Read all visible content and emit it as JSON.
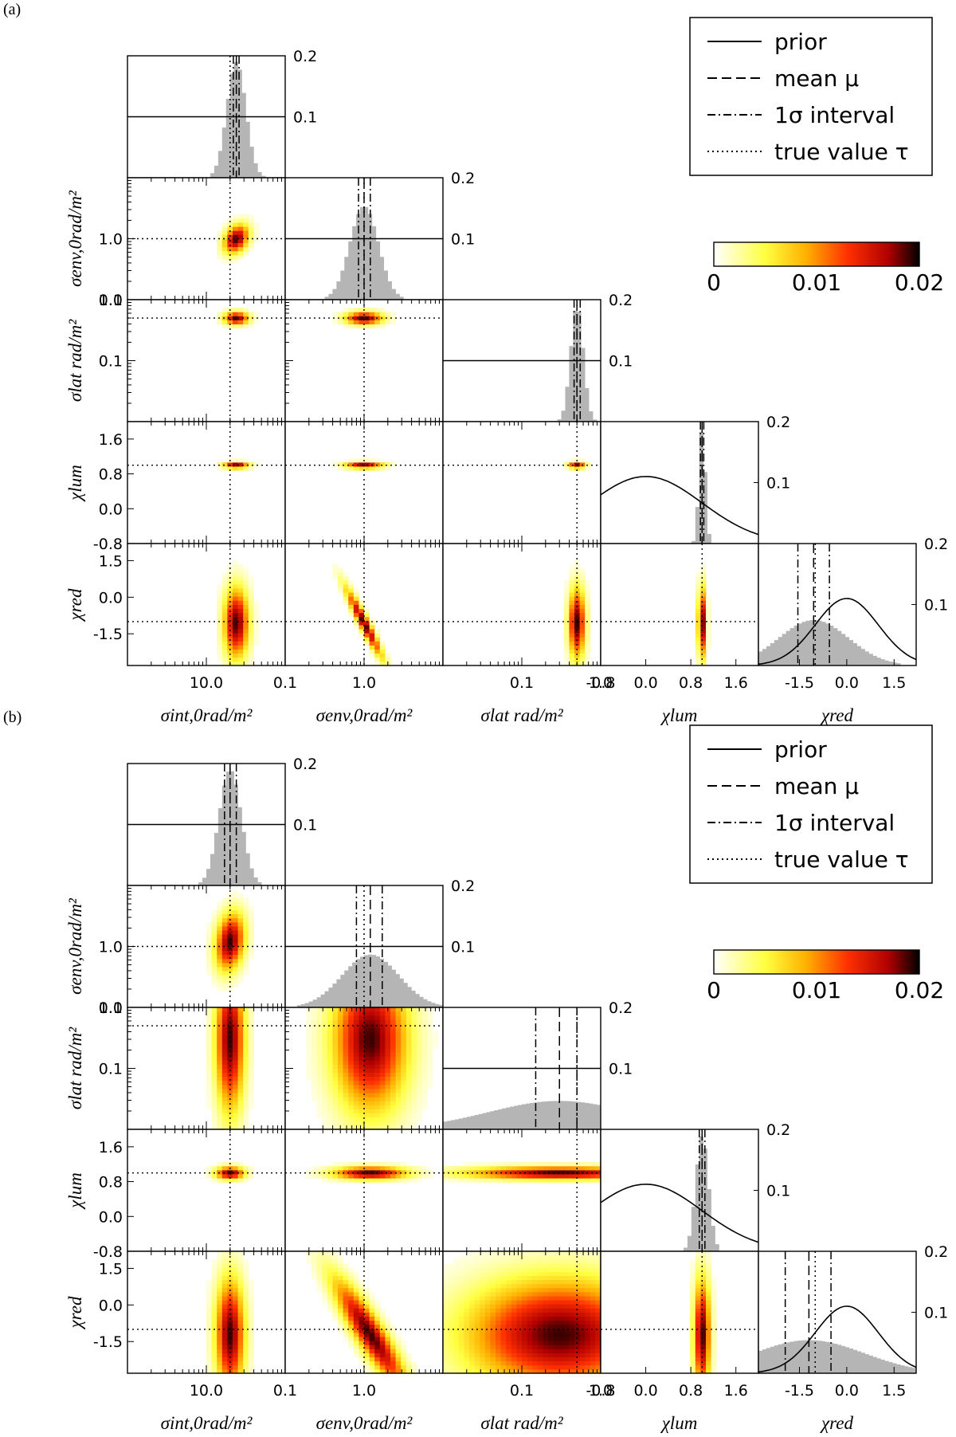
{
  "colorbar": {
    "min": 0,
    "max": 0.02,
    "ticks": [
      "0",
      "0.01",
      "0.02"
    ]
  },
  "legend": [
    {
      "label": "prior",
      "style": "solid"
    },
    {
      "label": "mean μ",
      "style": "dashed"
    },
    {
      "label": "1σ interval",
      "style": "dashdot"
    },
    {
      "label": "true value τ",
      "style": "dotted"
    }
  ],
  "chart_data": [
    {
      "type": "corner",
      "panel_label": "(a)",
      "parameters": [
        {
          "name": "σint,0rad/m²",
          "scale": "log",
          "range": [
            1,
            100
          ],
          "ticks": [
            "10.0"
          ],
          "true": 20
        },
        {
          "name": "σenv,0rad/m²",
          "scale": "log",
          "range": [
            0.1,
            10
          ],
          "ticks": [
            "0.1",
            "1.0"
          ],
          "true": 1.0
        },
        {
          "name": "σlat rad/m²",
          "scale": "log",
          "range": [
            0.01,
            1.0
          ],
          "ticks": [
            "0.1",
            "1.0"
          ],
          "true": 0.5
        },
        {
          "name": "χlum",
          "scale": "linear",
          "range": [
            -0.8,
            2.0
          ],
          "ticks": [
            "-0.8",
            "0.0",
            "0.8",
            "1.6"
          ],
          "true": 1.0
        },
        {
          "name": "χred",
          "scale": "linear",
          "range": [
            -2.8,
            2.2
          ],
          "ticks": [
            "-1.5",
            "0.0",
            "1.5"
          ],
          "true": -1.0
        }
      ],
      "ytick_labels": {
        "σenv,0rad/m²": [
          "0.1",
          "1.0"
        ],
        "σlat rad/m²": [
          "0.1",
          "1.0"
        ],
        "χlum": [
          "-0.8",
          "0.0",
          "0.8",
          "1.6"
        ],
        "χred": [
          "-1.5",
          "0.0",
          "1.5"
        ]
      },
      "diag_right_ticks": [
        "0.1",
        "0.2"
      ],
      "diag_ymax": 0.2,
      "marginals": [
        {
          "mean": 24,
          "interval": [
            22,
            26
          ],
          "spread": 0.06,
          "prior": "flat",
          "prior_level": 0.1
        },
        {
          "mean": 1.0,
          "interval": [
            0.85,
            1.2
          ],
          "spread": 0.09,
          "prior": "flat",
          "prior_level": 0.1
        },
        {
          "mean": 0.5,
          "interval": [
            0.46,
            0.55
          ],
          "spread": 0.04,
          "prior": "flat",
          "prior_level": 0.1
        },
        {
          "mean": 1.0,
          "interval": [
            0.97,
            1.03
          ],
          "spread": 0.02,
          "prior": "gaussian",
          "prior_level": 0.11
        },
        {
          "mean": -1.05,
          "interval": [
            -1.55,
            -0.55
          ],
          "spread": 0.22,
          "prior": "gaussian",
          "prior_level": 0.11
        }
      ],
      "correlations": [
        [
          1,
          0,
          0.3
        ],
        [
          2,
          0,
          0
        ],
        [
          2,
          1,
          0
        ],
        [
          3,
          0,
          0
        ],
        [
          3,
          1,
          0
        ],
        [
          3,
          2,
          0
        ],
        [
          4,
          0,
          0
        ],
        [
          4,
          1,
          -0.95
        ],
        [
          4,
          2,
          0
        ],
        [
          4,
          3,
          0
        ]
      ]
    },
    {
      "type": "corner",
      "panel_label": "(b)",
      "parameters": [
        {
          "name": "σint,0rad/m²",
          "scale": "log",
          "range": [
            1,
            100
          ],
          "ticks": [
            "10.0"
          ],
          "true": 20
        },
        {
          "name": "σenv,0rad/m²",
          "scale": "log",
          "range": [
            0.1,
            10
          ],
          "ticks": [
            "0.1",
            "1.0"
          ],
          "true": 1.0
        },
        {
          "name": "σlat rad/m²",
          "scale": "log",
          "range": [
            0.01,
            1.0
          ],
          "ticks": [
            "0.1",
            "1.0"
          ],
          "true": 0.5
        },
        {
          "name": "χlum",
          "scale": "linear",
          "range": [
            -0.8,
            2.0
          ],
          "ticks": [
            "-0.8",
            "0.0",
            "0.8",
            "1.6"
          ],
          "true": 1.0
        },
        {
          "name": "χred",
          "scale": "linear",
          "range": [
            -2.8,
            2.2
          ],
          "ticks": [
            "-1.5",
            "0.0",
            "1.5"
          ],
          "true": -1.0
        }
      ],
      "ytick_labels": {
        "σenv,0rad/m²": [
          "0.1",
          "1.0"
        ],
        "σlat rad/m²": [
          "0.1",
          "1.0"
        ],
        "χlum": [
          "-0.8",
          "0.0",
          "0.8",
          "1.6"
        ],
        "χred": [
          "-1.5",
          "0.0",
          "1.5"
        ]
      },
      "diag_right_ticks": [
        "0.1",
        "0.2"
      ],
      "diag_ymax": 0.2,
      "marginals": [
        {
          "mean": 20,
          "interval": [
            17,
            24
          ],
          "spread": 0.07,
          "prior": "flat",
          "prior_level": 0.1
        },
        {
          "mean": 1.2,
          "interval": [
            0.8,
            1.7
          ],
          "spread": 0.18,
          "prior": "flat",
          "prior_level": 0.1
        },
        {
          "mean": 0.3,
          "interval": [
            0.15,
            0.5
          ],
          "spread": 0.45,
          "prior": "flat",
          "prior_level": 0.1
        },
        {
          "mean": 1.0,
          "interval": [
            0.95,
            1.05
          ],
          "spread": 0.04,
          "prior": "gaussian",
          "prior_level": 0.11
        },
        {
          "mean": -1.2,
          "interval": [
            -1.95,
            -0.5
          ],
          "spread": 0.35,
          "prior": "gaussian",
          "prior_level": 0.11
        }
      ],
      "correlations": [
        [
          1,
          0,
          0.2
        ],
        [
          2,
          0,
          0
        ],
        [
          2,
          1,
          0
        ],
        [
          3,
          0,
          0
        ],
        [
          3,
          1,
          0
        ],
        [
          3,
          2,
          0
        ],
        [
          4,
          0,
          0
        ],
        [
          4,
          1,
          -0.9
        ],
        [
          4,
          2,
          0
        ],
        [
          4,
          3,
          0
        ]
      ]
    }
  ]
}
